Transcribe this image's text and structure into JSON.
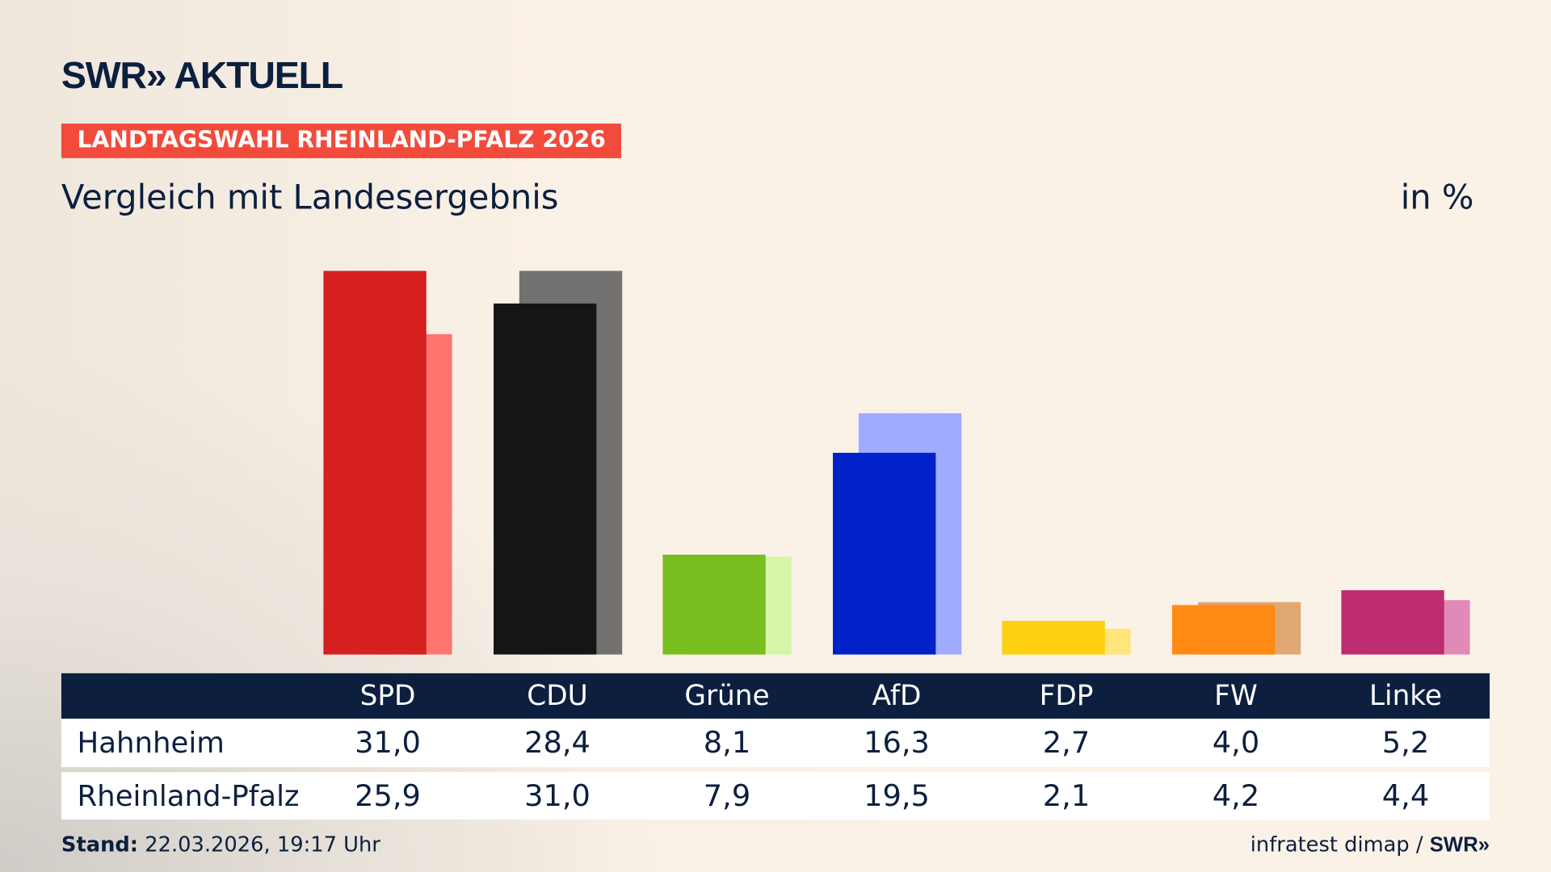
{
  "header": {
    "logo": "SWR» AKTUELL",
    "badge": "LANDTAGSWAHL RHEINLAND-PFALZ 2026",
    "subtitle": "Vergleich mit Landesergebnis",
    "unit": "in %"
  },
  "chart_data": {
    "type": "bar",
    "categories": [
      "SPD",
      "CDU",
      "Grüne",
      "AfD",
      "FDP",
      "FW",
      "Linke"
    ],
    "series": [
      {
        "name": "Hahnheim",
        "values": [
          31.0,
          28.4,
          8.1,
          16.3,
          2.7,
          4.0,
          5.2
        ]
      },
      {
        "name": "Rheinland-Pfalz",
        "values": [
          25.9,
          31.0,
          7.9,
          19.5,
          2.1,
          4.2,
          4.4
        ]
      }
    ],
    "colors_main": [
      "#d61f1f",
      "#151515",
      "#78be1e",
      "#0020c8",
      "#ffd00f",
      "#ff8a14",
      "#be2d72"
    ],
    "colors_secondary": [
      "#ff7570",
      "#737170",
      "#d6f5a9",
      "#9fabff",
      "#ffe57a",
      "#e0a872",
      "#e08ab8"
    ],
    "ylim": [
      0,
      31
    ],
    "grid": false
  },
  "table": {
    "rows": [
      {
        "label": "Hahnheim",
        "values": [
          "31,0",
          "28,4",
          "8,1",
          "16,3",
          "2,7",
          "4,0",
          "5,2"
        ]
      },
      {
        "label": "Rheinland-Pfalz",
        "values": [
          "25,9",
          "31,0",
          "7,9",
          "19,5",
          "2,1",
          "4,2",
          "4,4"
        ]
      }
    ]
  },
  "footer": {
    "stand_label": "Stand:",
    "stand_value": "22.03.2026, 19:17 Uhr",
    "source": "infratest dimap /",
    "source_logo": "SWR»"
  }
}
